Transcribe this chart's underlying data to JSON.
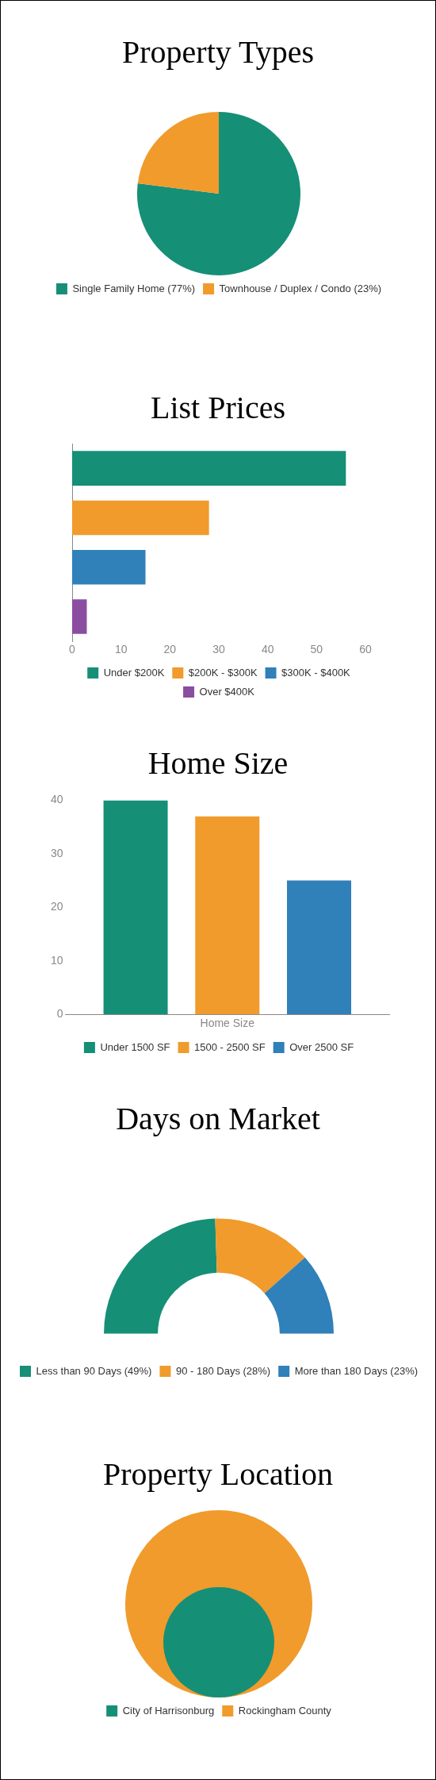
{
  "chart_data": [
    {
      "type": "pie",
      "title": "Property Types",
      "categories": [
        "Single Family Home (77%)",
        "Townhouse / Duplex / Condo (23%)"
      ],
      "values": [
        77,
        23
      ],
      "colors": [
        "#168f77",
        "#f09b2c"
      ],
      "legend": "bottom"
    },
    {
      "type": "bar",
      "title": "List Prices",
      "orientation": "horizontal",
      "categories": [
        null,
        null,
        null,
        null
      ],
      "series": [
        {
          "name": "Under $200K",
          "color": "#168f77",
          "values": [
            56,
            null,
            null,
            null
          ]
        },
        {
          "name": "$200K - $300K",
          "color": "#f09b2c",
          "values": [
            null,
            28,
            null,
            null
          ]
        },
        {
          "name": "$300K - $400K",
          "color": "#3080b9",
          "values": [
            null,
            null,
            15,
            null
          ]
        },
        {
          "name": "Over $400K",
          "color": "#8b4da0",
          "values": [
            null,
            null,
            null,
            3
          ]
        }
      ],
      "xlim": [
        0,
        60
      ],
      "xticks": [
        0,
        10,
        20,
        30,
        40,
        50,
        60
      ],
      "legend": "bottom"
    },
    {
      "type": "bar",
      "title": "Home Size",
      "xlabel": "Home Size",
      "categories": [
        null
      ],
      "series": [
        {
          "name": "Under 1500 SF",
          "color": "#168f77",
          "values": [
            40
          ]
        },
        {
          "name": "1500 - 2500 SF",
          "color": "#f09b2c",
          "values": [
            37
          ]
        },
        {
          "name": "Over 2500 SF",
          "color": "#3080b9",
          "values": [
            25
          ]
        }
      ],
      "ylim": [
        0,
        40
      ],
      "yticks": [
        0,
        10,
        20,
        30,
        40
      ],
      "legend": "bottom"
    },
    {
      "type": "donut",
      "title": "Days on Market",
      "categories": [
        "Less than 90 Days (49%)",
        "90 - 180 Days (28%)",
        "More than 180 Days (23%)"
      ],
      "values": [
        49,
        28,
        23
      ],
      "colors": [
        "#168f77",
        "#f09b2c",
        "#3080b9"
      ],
      "legend": "bottom"
    },
    {
      "type": "other",
      "title": "Property Location",
      "series": [
        {
          "name": "City of Harrisonburg",
          "color": "#168f77"
        },
        {
          "name": "Rockingham County",
          "color": "#f09b2c"
        }
      ],
      "legend": "bottom"
    }
  ]
}
